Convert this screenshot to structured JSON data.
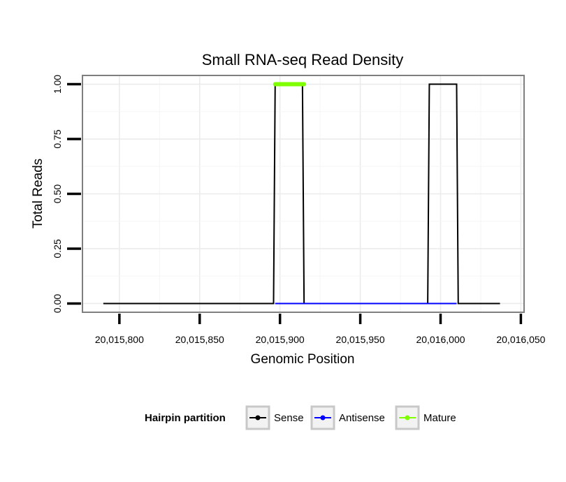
{
  "chart_data": {
    "type": "line",
    "title": "Small RNA-seq Read Density",
    "xlabel": "Genomic Position",
    "ylabel": "Total Reads",
    "xlim": [
      20015777,
      20016052
    ],
    "ylim": [
      -0.04,
      1.04
    ],
    "x_ticks": [
      20015800,
      20015850,
      20015900,
      20015950,
      20016000,
      20016050
    ],
    "x_tick_labels": [
      "20,015,800",
      "20,015,850",
      "20,015,900",
      "20,015,950",
      "20,016,000",
      "20,016,050"
    ],
    "y_ticks": [
      0,
      0.25,
      0.5,
      0.75,
      1.0
    ],
    "y_tick_labels": [
      "0.00",
      "0.25",
      "0.50",
      "0.75",
      "1.00"
    ],
    "grid": true,
    "legend": {
      "title": "Hairpin partition",
      "position": "bottom",
      "entries": [
        {
          "name": "Sense",
          "color": "#000000"
        },
        {
          "name": "Antisense",
          "color": "#0000ff"
        },
        {
          "name": "Mature",
          "color": "#7fff00"
        }
      ]
    },
    "series": [
      {
        "name": "Sense",
        "color": "#000000",
        "x": [
          20015790,
          20015896,
          20015897,
          20015914,
          20015915,
          20015992,
          20015993,
          20016010,
          20016011,
          20016037
        ],
        "y": [
          0,
          0,
          1,
          1,
          0,
          0,
          1,
          1,
          0,
          0
        ]
      },
      {
        "name": "Antisense",
        "color": "#0000ff",
        "x": [
          20015897,
          20015914,
          20015993,
          20016010
        ],
        "y": [
          0,
          0,
          0,
          0
        ]
      },
      {
        "name": "Mature",
        "color": "#7fff00",
        "x": [
          20015897,
          20015915
        ],
        "y": [
          1,
          1
        ]
      }
    ]
  }
}
